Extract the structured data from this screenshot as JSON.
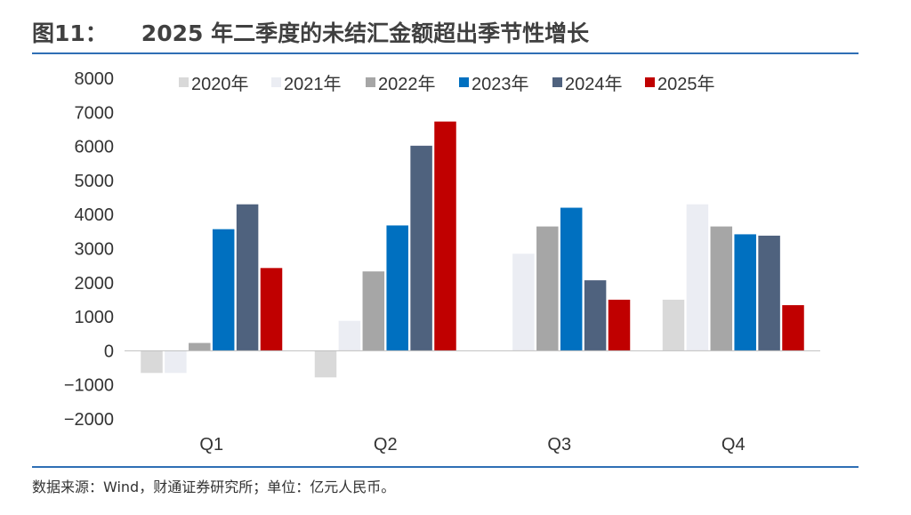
{
  "header": {
    "figure_number": "图11：",
    "title": "2025 年二季度的未结汇金额超出季节性增长"
  },
  "footer": {
    "source": "数据来源：Wind，财通证券研究所；单位：亿元人民币。"
  },
  "chart_data": {
    "type": "bar",
    "categories": [
      "Q1",
      "Q2",
      "Q3",
      "Q4"
    ],
    "series": [
      {
        "name": "2020年",
        "color": "#d9d9d9",
        "values": [
          -650,
          -780,
          null,
          1500
        ]
      },
      {
        "name": "2021年",
        "color": "#ebedf3",
        "values": [
          -650,
          880,
          2850,
          4300
        ]
      },
      {
        "name": "2022年",
        "color": "#a6a6a6",
        "values": [
          230,
          2330,
          3650,
          3650
        ]
      },
      {
        "name": "2023年",
        "color": "#0070c0",
        "values": [
          3570,
          3680,
          4200,
          3420
        ]
      },
      {
        "name": "2024年",
        "color": "#4f627e",
        "values": [
          4300,
          6020,
          2070,
          3380
        ]
      },
      {
        "name": "2025年",
        "color": "#c00000",
        "values": [
          2430,
          6730,
          1500,
          1340
        ]
      }
    ],
    "yticks": [
      -2000,
      -1000,
      0,
      1000,
      2000,
      3000,
      4000,
      5000,
      6000,
      7000,
      8000
    ],
    "ylim": [
      -2000,
      8000
    ],
    "legend_position": "top",
    "grid": false,
    "xlabel": "",
    "ylabel": ""
  }
}
